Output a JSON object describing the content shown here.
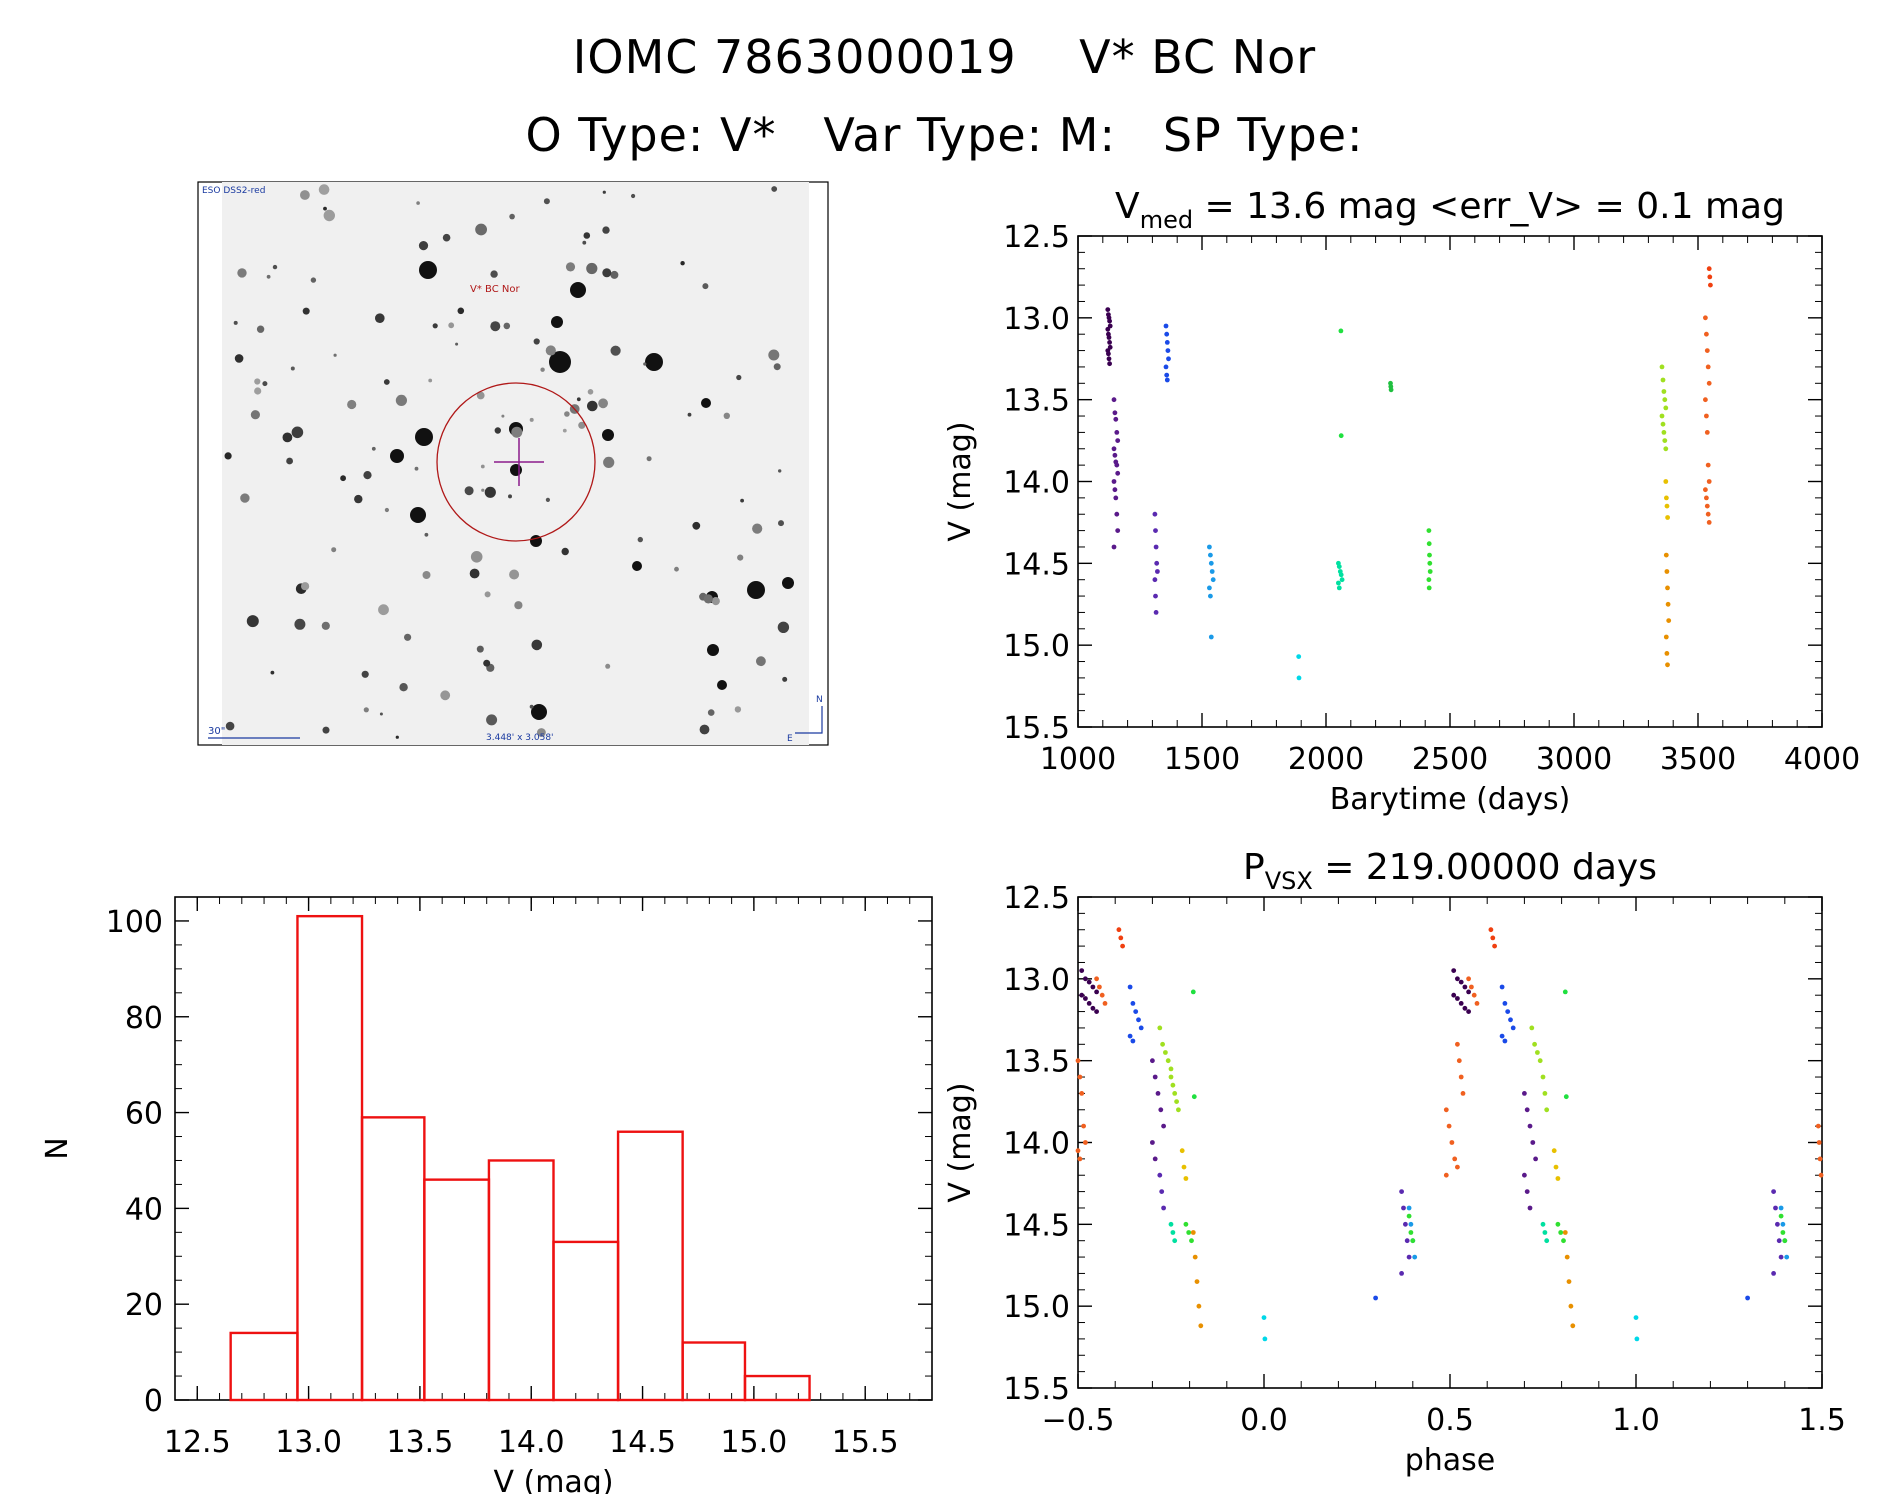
{
  "header": {
    "title": "IOMC 7863000019    V* BC Nor",
    "subtitle": "O Type: V*   Var Type: M:   SP Type:"
  },
  "sky_image": {
    "survey_label": "ESO DSS2-red",
    "target_label": "V* BC Nor",
    "scale_label": "30\"",
    "fov_label": "3.448' x 3.058'",
    "north_label": "N",
    "east_label": "E"
  },
  "chart_data": [
    {
      "id": "light_curve",
      "type": "scatter",
      "title": "V_med = 13.6 mag <err_V> = 0.1 mag",
      "title_parts": {
        "main": "V",
        "sub": "med",
        "rest": " = 13.6 mag <err_V> = 0.1 mag"
      },
      "xlabel": "Barytime (days)",
      "ylabel": "V (mag)",
      "xlim": [
        1000,
        4000
      ],
      "ylim": [
        15.5,
        12.5
      ],
      "xticks": [
        "1000",
        "1500",
        "2000",
        "2500",
        "3000",
        "3500",
        "4000"
      ],
      "yticks": [
        "12.5",
        "13.0",
        "13.5",
        "14.0",
        "14.5",
        "15.0",
        "15.5"
      ],
      "grid": false,
      "points_by_color": true,
      "groups": [
        {
          "color": "#3a0050",
          "x_range": [
            1120,
            1130
          ],
          "values": [
            12.95,
            12.98,
            13.0,
            13.02,
            13.05,
            13.07,
            13.1,
            13.12,
            13.15,
            13.18,
            13.2,
            13.22,
            13.25,
            13.28
          ]
        },
        {
          "color": "#5a1a8a",
          "x_range": [
            1145,
            1160
          ],
          "values": [
            13.5,
            13.58,
            13.62,
            13.7,
            13.75,
            13.8,
            13.84,
            13.88,
            13.9,
            13.95,
            14.0,
            14.05,
            14.1,
            14.2,
            14.3,
            14.4
          ]
        },
        {
          "color": "#5a2ab0",
          "x_range": [
            1310,
            1320
          ],
          "values": [
            14.2,
            14.3,
            14.4,
            14.5,
            14.55,
            14.6,
            14.7,
            14.8
          ]
        },
        {
          "color": "#1a4ae8",
          "x_range": [
            1355,
            1365
          ],
          "values": [
            13.05,
            13.1,
            13.15,
            13.2,
            13.25,
            13.3,
            13.35,
            13.38
          ]
        },
        {
          "color": "#1a9ae8",
          "x_range": [
            1530,
            1545
          ],
          "values": [
            14.4,
            14.45,
            14.5,
            14.55,
            14.6,
            14.65,
            14.7,
            14.95
          ]
        },
        {
          "color": "#00d8e8",
          "x_range": [
            1890,
            1895
          ],
          "values": [
            15.07,
            15.2
          ]
        },
        {
          "color": "#00e0a0",
          "x_range": [
            2050,
            2065
          ],
          "values": [
            14.5,
            14.52,
            14.55,
            14.57,
            14.6,
            14.62,
            14.65
          ]
        },
        {
          "color": "#20e040",
          "x_range": [
            2060,
            2065
          ],
          "values": [
            13.08,
            13.72
          ]
        },
        {
          "color": "#20c040",
          "x_range": [
            2260,
            2265
          ],
          "values": [
            13.4,
            13.42,
            13.44
          ]
        },
        {
          "color": "#30e030",
          "x_range": [
            2415,
            2420
          ],
          "values": [
            14.3,
            14.38,
            14.45,
            14.5,
            14.55,
            14.6,
            14.65
          ]
        },
        {
          "color": "#a0e020",
          "x_range": [
            3355,
            3370
          ],
          "values": [
            13.3,
            13.38,
            13.45,
            13.5,
            13.55,
            13.6,
            13.65,
            13.7,
            13.75,
            13.8
          ]
        },
        {
          "color": "#e8c000",
          "x_range": [
            3370,
            3380
          ],
          "values": [
            14.0,
            14.1,
            14.15,
            14.22
          ]
        },
        {
          "color": "#e89000",
          "x_range": [
            3372,
            3382
          ],
          "values": [
            14.45,
            14.55,
            14.65,
            14.75,
            14.85,
            14.95,
            15.05,
            15.12
          ]
        },
        {
          "color": "#f06020",
          "x_range": [
            3530,
            3545
          ],
          "values": [
            13.0,
            13.1,
            13.2,
            13.3,
            13.4,
            13.5,
            13.6,
            13.7,
            13.9,
            14.0,
            14.05,
            14.1,
            14.15,
            14.2,
            14.25
          ]
        },
        {
          "color": "#f04010",
          "x_range": [
            3545,
            3555
          ],
          "values": [
            12.7,
            12.75,
            12.8
          ]
        }
      ]
    },
    {
      "id": "histogram",
      "type": "bar",
      "title": "",
      "xlabel": "V (mag)",
      "ylabel": "N",
      "xlim": [
        12.4,
        15.8
      ],
      "ylim": [
        0,
        105
      ],
      "xticks": [
        "12.5",
        "13.0",
        "13.5",
        "14.0",
        "14.5",
        "15.0",
        "15.5"
      ],
      "yticks": [
        "0",
        "20",
        "40",
        "60",
        "80",
        "100"
      ],
      "bar_color": "#ee1111",
      "bins": [
        {
          "x0": 12.65,
          "x1": 12.95,
          "value": 14
        },
        {
          "x0": 12.95,
          "x1": 13.24,
          "value": 101
        },
        {
          "x0": 13.24,
          "x1": 13.52,
          "value": 59
        },
        {
          "x0": 13.52,
          "x1": 13.81,
          "value": 46
        },
        {
          "x0": 13.81,
          "x1": 14.1,
          "value": 50
        },
        {
          "x0": 14.1,
          "x1": 14.39,
          "value": 33
        },
        {
          "x0": 14.39,
          "x1": 14.68,
          "value": 56
        },
        {
          "x0": 14.68,
          "x1": 14.96,
          "value": 12
        },
        {
          "x0": 14.96,
          "x1": 15.25,
          "value": 5
        }
      ]
    },
    {
      "id": "phased",
      "type": "scatter",
      "title": "P_VSX = 219.00000 days",
      "title_parts": {
        "main": "P",
        "sub": "VSX",
        "rest": " = 219.00000 days"
      },
      "xlabel": "phase",
      "ylabel": "V (mag)",
      "xlim": [
        -0.5,
        1.5
      ],
      "ylim": [
        15.5,
        12.5
      ],
      "xticks": [
        "−0.5",
        "0.0",
        "0.5",
        "1.0",
        "1.5"
      ],
      "yticks": [
        "12.5",
        "13.0",
        "13.5",
        "14.0",
        "14.5",
        "15.0",
        "15.5"
      ],
      "grid": false,
      "groups": [
        {
          "color": "#3a0050",
          "phase_range": [
            -0.49,
            -0.45
          ],
          "values": [
            12.95,
            13.0,
            13.02,
            13.05,
            13.08,
            13.1,
            13.12,
            13.15,
            13.18,
            13.2
          ]
        },
        {
          "color": "#f06020",
          "phase_range": [
            -0.5,
            -0.48
          ],
          "values": [
            13.5,
            13.6,
            13.7,
            13.9,
            14.0,
            14.05,
            14.1
          ]
        },
        {
          "color": "#f06020",
          "phase_range": [
            -0.45,
            -0.42
          ],
          "values": [
            13.0,
            13.05,
            13.1,
            13.15
          ]
        },
        {
          "color": "#f04010",
          "phase_range": [
            -0.39,
            -0.37
          ],
          "values": [
            12.7,
            12.75,
            12.8
          ]
        },
        {
          "color": "#1a4ae8",
          "phase_range": [
            -0.36,
            -0.33
          ],
          "values": [
            13.05,
            13.15,
            13.2,
            13.25,
            13.3,
            13.35,
            13.38
          ]
        },
        {
          "color": "#5a1a8a",
          "phase_range": [
            -0.3,
            -0.27
          ],
          "values": [
            13.5,
            13.6,
            13.7,
            13.8,
            13.9,
            14.0,
            14.1
          ]
        },
        {
          "color": "#a0e020",
          "phase_range": [
            -0.28,
            -0.25
          ],
          "values": [
            13.3,
            13.4,
            13.45,
            13.5,
            13.55
          ]
        },
        {
          "color": "#5a2ab0",
          "phase_range": [
            -0.28,
            -0.26
          ],
          "values": [
            14.2,
            14.3,
            14.4
          ]
        },
        {
          "color": "#a0e020",
          "phase_range": [
            -0.25,
            -0.23
          ],
          "values": [
            13.6,
            13.65,
            13.7,
            13.75,
            13.8
          ]
        },
        {
          "color": "#00e0a0",
          "phase_range": [
            -0.25,
            -0.23
          ],
          "values": [
            14.5,
            14.55,
            14.6
          ]
        },
        {
          "color": "#e8c000",
          "phase_range": [
            -0.22,
            -0.2
          ],
          "values": [
            14.05,
            14.15,
            14.22
          ]
        },
        {
          "color": "#30e030",
          "phase_range": [
            -0.21,
            -0.18
          ],
          "values": [
            14.5,
            14.55,
            14.6
          ]
        },
        {
          "color": "#20e040",
          "phase_range": [
            -0.19,
            -0.18
          ],
          "values": [
            13.08,
            13.72
          ]
        },
        {
          "color": "#e89000",
          "phase_range": [
            -0.19,
            -0.17
          ],
          "values": [
            14.55,
            14.7,
            14.85,
            15.0,
            15.12
          ]
        },
        {
          "color": "#00d8e8",
          "phase_range": [
            0.0,
            0.01
          ],
          "values": [
            15.07,
            15.2
          ]
        },
        {
          "color": "#1a4ae8",
          "phase_range": [
            0.3,
            0.3
          ],
          "values": [
            14.95
          ]
        },
        {
          "color": "#5a2ab0",
          "phase_range": [
            0.37,
            0.39
          ],
          "values": [
            14.3,
            14.4,
            14.5,
            14.6,
            14.7,
            14.8
          ]
        },
        {
          "color": "#1a9ae8",
          "phase_range": [
            0.39,
            0.41
          ],
          "values": [
            14.4,
            14.5,
            14.6,
            14.7
          ]
        },
        {
          "color": "#30e030",
          "phase_range": [
            0.39,
            0.41
          ],
          "values": [
            14.45,
            14.55,
            14.6
          ]
        },
        {
          "color": "#f06020",
          "phase_range": [
            0.49,
            0.52
          ],
          "values": [
            13.8,
            13.9,
            14.0,
            14.1,
            14.15,
            14.2
          ]
        },
        {
          "color": "#3a0050",
          "phase_range": [
            0.51,
            0.55
          ],
          "values": [
            12.95,
            13.0,
            13.02,
            13.05,
            13.08,
            13.1,
            13.12,
            13.15,
            13.18,
            13.2
          ]
        },
        {
          "color": "#f06020",
          "phase_range": [
            0.52,
            0.54
          ],
          "values": [
            13.4,
            13.5,
            13.6,
            13.7
          ]
        },
        {
          "color": "#f06020",
          "phase_range": [
            0.55,
            0.58
          ],
          "values": [
            13.0,
            13.05,
            13.1,
            13.15
          ]
        },
        {
          "color": "#f04010",
          "phase_range": [
            0.61,
            0.63
          ],
          "values": [
            12.7,
            12.75,
            12.8
          ]
        },
        {
          "color": "#1a4ae8",
          "phase_range": [
            0.64,
            0.67
          ],
          "values": [
            13.05,
            13.15,
            13.2,
            13.25,
            13.3,
            13.35,
            13.38
          ]
        },
        {
          "color": "#5a1a8a",
          "phase_range": [
            0.7,
            0.73
          ],
          "values": [
            13.7,
            13.8,
            13.9,
            14.0,
            14.1,
            14.2,
            14.3,
            14.4
          ]
        },
        {
          "color": "#a0e020",
          "phase_range": [
            0.72,
            0.75
          ],
          "values": [
            13.3,
            13.4,
            13.45,
            13.5
          ]
        },
        {
          "color": "#a0e020",
          "phase_range": [
            0.75,
            0.77
          ],
          "values": [
            13.6,
            13.7,
            13.8
          ]
        },
        {
          "color": "#00e0a0",
          "phase_range": [
            0.75,
            0.77
          ],
          "values": [
            14.5,
            14.55,
            14.6
          ]
        },
        {
          "color": "#e8c000",
          "phase_range": [
            0.78,
            0.8
          ],
          "values": [
            14.05,
            14.15,
            14.22
          ]
        },
        {
          "color": "#30e030",
          "phase_range": [
            0.79,
            0.82
          ],
          "values": [
            14.5,
            14.55,
            14.6
          ]
        },
        {
          "color": "#20e040",
          "phase_range": [
            0.81,
            0.82
          ],
          "values": [
            13.08,
            13.72
          ]
        },
        {
          "color": "#e89000",
          "phase_range": [
            0.81,
            0.83
          ],
          "values": [
            14.55,
            14.7,
            14.85,
            15.0,
            15.12
          ]
        },
        {
          "color": "#00d8e8",
          "phase_range": [
            1.0,
            1.01
          ],
          "values": [
            15.07,
            15.2
          ]
        },
        {
          "color": "#1a4ae8",
          "phase_range": [
            1.3,
            1.3
          ],
          "values": [
            14.95
          ]
        },
        {
          "color": "#5a2ab0",
          "phase_range": [
            1.37,
            1.39
          ],
          "values": [
            14.3,
            14.4,
            14.5,
            14.6,
            14.7,
            14.8
          ]
        },
        {
          "color": "#1a9ae8",
          "phase_range": [
            1.39,
            1.41
          ],
          "values": [
            14.4,
            14.5,
            14.6,
            14.7
          ]
        },
        {
          "color": "#30e030",
          "phase_range": [
            1.39,
            1.41
          ],
          "values": [
            14.45,
            14.55,
            14.6
          ]
        },
        {
          "color": "#f06020",
          "phase_range": [
            1.49,
            1.5
          ],
          "values": [
            13.9,
            14.0,
            14.1,
            14.2
          ]
        }
      ]
    }
  ]
}
